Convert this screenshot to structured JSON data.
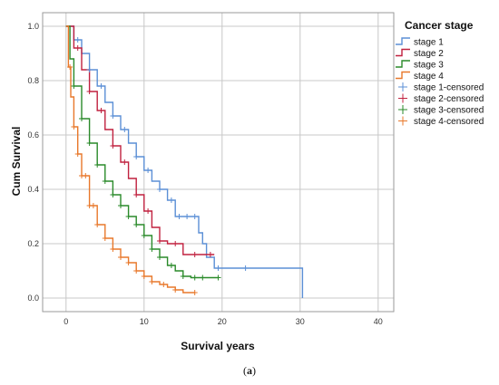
{
  "caption": {
    "open": "(",
    "letter": "a",
    "close": ")"
  },
  "chart_data": {
    "type": "line",
    "title": "",
    "xlabel": "Survival years",
    "ylabel": "Cum Survival",
    "xlim": [
      -3,
      42
    ],
    "ylim": [
      -0.05,
      1.05
    ],
    "xticks": [
      "0",
      "10",
      "20",
      "30",
      "40"
    ],
    "yticks": [
      "0.0",
      "0.2",
      "0.4",
      "0.6",
      "0.8",
      "1.0"
    ],
    "grid": true,
    "legend": {
      "title": "Cancer stage",
      "position": "right",
      "entries": [
        "stage 1",
        "stage 2",
        "stage 3",
        "stage 4",
        "stage 1-censored",
        "stage 2-censored",
        "stage 3-censored",
        "stage 4-censored"
      ]
    },
    "series": [
      {
        "name": "stage 1",
        "color": "#5b8fd6",
        "x": [
          0,
          1,
          2,
          3,
          4,
          5,
          6,
          7,
          8,
          9,
          10,
          11,
          12,
          13,
          14,
          16,
          17,
          17.5,
          18,
          19,
          20,
          25,
          30.3,
          30.3
        ],
        "y": [
          1.0,
          0.95,
          0.9,
          0.84,
          0.78,
          0.72,
          0.67,
          0.62,
          0.57,
          0.52,
          0.47,
          0.43,
          0.4,
          0.36,
          0.3,
          0.3,
          0.24,
          0.2,
          0.15,
          0.11,
          0.11,
          0.11,
          0.11,
          0.0
        ],
        "censored_x": [
          1.5,
          3,
          4.5,
          6,
          7.5,
          9,
          10.5,
          12,
          13.5,
          14.5,
          15.5,
          16.5,
          19.5,
          23
        ]
      },
      {
        "name": "stage 2",
        "color": "#c0213f",
        "x": [
          0,
          1,
          2,
          3,
          4,
          5,
          6,
          7,
          8,
          9,
          10,
          11,
          12,
          13,
          15,
          17,
          19
        ],
        "y": [
          1.0,
          0.92,
          0.84,
          0.76,
          0.69,
          0.62,
          0.56,
          0.5,
          0.44,
          0.38,
          0.32,
          0.26,
          0.21,
          0.2,
          0.16,
          0.16,
          0.16
        ],
        "censored_x": [
          1.5,
          3,
          4.5,
          6,
          7.5,
          9,
          10.5,
          12,
          14,
          16.5,
          18.5
        ]
      },
      {
        "name": "stage 3",
        "color": "#2a8a2a",
        "x": [
          0,
          0.5,
          1,
          2,
          3,
          4,
          5,
          6,
          7,
          8,
          9,
          10,
          11,
          12,
          13,
          14,
          15,
          16,
          19.5
        ],
        "y": [
          1.0,
          0.88,
          0.78,
          0.66,
          0.57,
          0.49,
          0.43,
          0.38,
          0.34,
          0.3,
          0.27,
          0.23,
          0.18,
          0.15,
          0.12,
          0.1,
          0.08,
          0.075,
          0.075
        ],
        "censored_x": [
          1,
          2,
          3,
          4,
          5,
          6,
          7,
          8,
          9,
          10,
          11,
          12,
          13.5,
          15,
          16.5,
          17.5,
          19.5
        ]
      },
      {
        "name": "stage 4",
        "color": "#e8782b",
        "x": [
          0,
          0.3,
          0.6,
          1,
          1.5,
          2,
          3,
          4,
          5,
          6,
          7,
          8,
          9,
          10,
          11,
          12,
          13,
          14,
          15,
          16.5
        ],
        "y": [
          1.0,
          0.85,
          0.74,
          0.63,
          0.53,
          0.45,
          0.34,
          0.27,
          0.22,
          0.18,
          0.15,
          0.13,
          0.1,
          0.08,
          0.06,
          0.05,
          0.04,
          0.03,
          0.02,
          0.02
        ],
        "censored_x": [
          0.5,
          1,
          1.5,
          2,
          2.5,
          3,
          3.5,
          4,
          5,
          6,
          7,
          8,
          9,
          10,
          11,
          12.5,
          14,
          16.5
        ]
      }
    ]
  }
}
